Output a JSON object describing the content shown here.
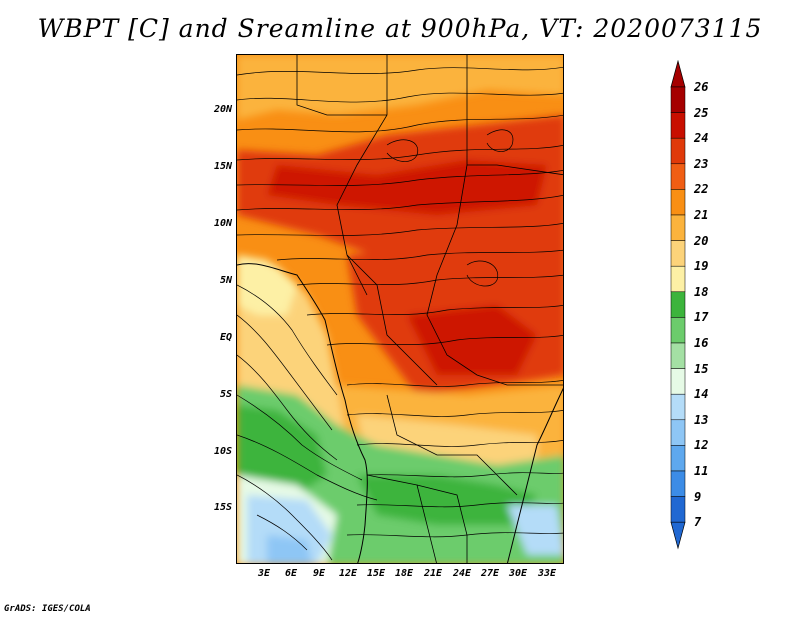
{
  "title": "WBPT [C] and Sreamline at 900hPa, VT: 2020073115",
  "credit": "GrADS: IGES/COLA",
  "axes": {
    "lat_labels": [
      "20N",
      "15N",
      "10N",
      "5N",
      "EQ",
      "5S",
      "10S",
      "15S"
    ],
    "lon_labels": [
      "3E",
      "6E",
      "9E",
      "12E",
      "15E",
      "18E",
      "21E",
      "24E",
      "27E",
      "30E",
      "33E"
    ]
  },
  "colorbar": {
    "labels": [
      "26",
      "25",
      "24",
      "23",
      "22",
      "21",
      "20",
      "19",
      "18",
      "17",
      "16",
      "15",
      "14",
      "13",
      "12",
      "11",
      "9",
      "7"
    ],
    "colors": [
      "#a50000",
      "#c80f00",
      "#e03a0a",
      "#f05e14",
      "#f98f14",
      "#fbb33d",
      "#fcd37a",
      "#fdf0a5",
      "#3cb43c",
      "#6ccc6c",
      "#a4e0a4",
      "#e6fae6",
      "#b4dcf8",
      "#8ec6f5",
      "#5ea8ee",
      "#3c8ce6",
      "#2068d2"
    ]
  },
  "field": {
    "variable": "WBPT",
    "units": "C",
    "level": "900hPa",
    "valid_time": "2020073115"
  }
}
